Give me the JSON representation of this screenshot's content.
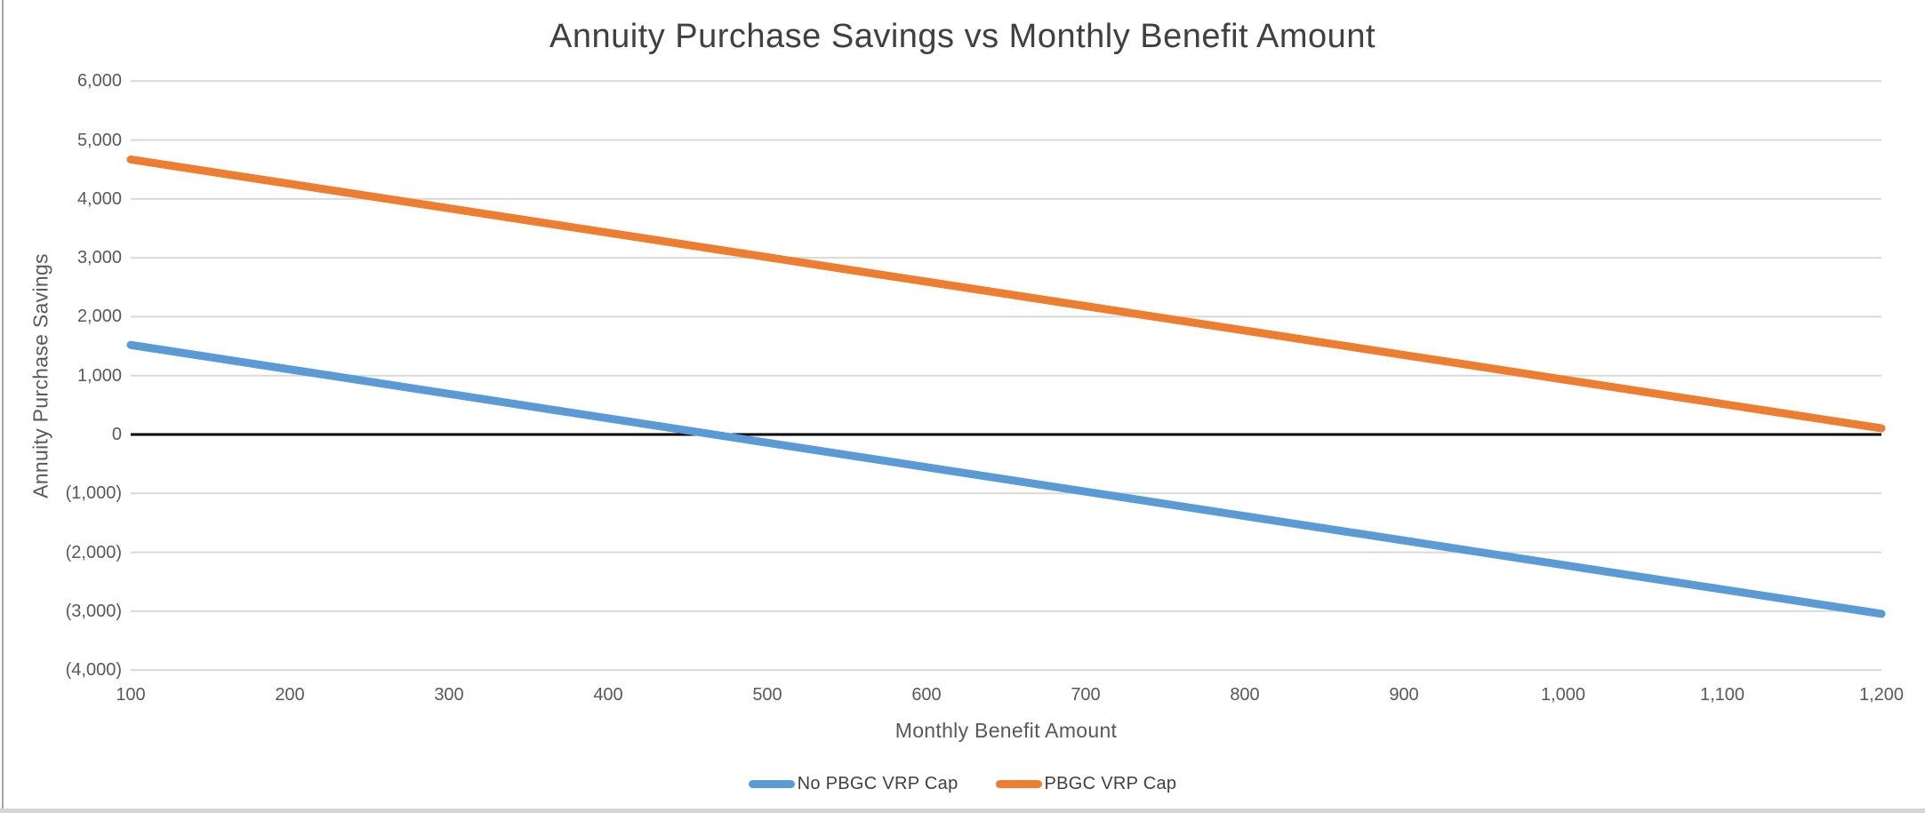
{
  "window": {
    "type": "embedded-chart"
  },
  "chart_data": {
    "type": "line",
    "title": "Annuity Purchase Savings vs Monthly Benefit Amount",
    "xlabel": "Monthly Benefit Amount",
    "ylabel": "Annuity Purchase Savings",
    "x": [
      100,
      200,
      300,
      400,
      500,
      600,
      700,
      800,
      900,
      1000,
      1100,
      1200
    ],
    "series": [
      {
        "name": "No PBGC VRP Cap",
        "color": "#5B9BD5",
        "values": [
          1520,
          1105,
          690,
          275,
          -140,
          -555,
          -970,
          -1385,
          -1800,
          -2215,
          -2630,
          -3045
        ]
      },
      {
        "name": "PBGC VRP Cap",
        "color": "#ED7D31",
        "values": [
          4670,
          4255,
          3840,
          3425,
          3010,
          2595,
          2180,
          1765,
          1350,
          935,
          520,
          105
        ]
      }
    ],
    "xlim": [
      100,
      1200
    ],
    "ylim": [
      -4000,
      6000
    ],
    "x_ticks": [
      {
        "v": 100,
        "label": "100"
      },
      {
        "v": 200,
        "label": "200"
      },
      {
        "v": 300,
        "label": "300"
      },
      {
        "v": 400,
        "label": "400"
      },
      {
        "v": 500,
        "label": "500"
      },
      {
        "v": 600,
        "label": "600"
      },
      {
        "v": 700,
        "label": "700"
      },
      {
        "v": 800,
        "label": "800"
      },
      {
        "v": 900,
        "label": "900"
      },
      {
        "v": 1000,
        "label": "1,000"
      },
      {
        "v": 1100,
        "label": "1,100"
      },
      {
        "v": 1200,
        "label": "1,200"
      }
    ],
    "y_ticks": [
      {
        "v": 6000,
        "label": "6,000"
      },
      {
        "v": 5000,
        "label": "5,000"
      },
      {
        "v": 4000,
        "label": "4,000"
      },
      {
        "v": 3000,
        "label": "3,000"
      },
      {
        "v": 2000,
        "label": "2,000"
      },
      {
        "v": 1000,
        "label": "1,000"
      },
      {
        "v": 0,
        "label": "0"
      },
      {
        "v": -1000,
        "label": "(1,000)"
      },
      {
        "v": -2000,
        "label": "(2,000)"
      },
      {
        "v": -3000,
        "label": "(3,000)"
      },
      {
        "v": -4000,
        "label": "(4,000)"
      }
    ],
    "grid": "horizontal",
    "legend_position": "bottom",
    "colors": {
      "gridline": "#D9D9D9",
      "zero_line": "#000000",
      "title_text": "#404040",
      "tick_text": "#595959",
      "axis_title_text": "#595959",
      "legend_text": "#404040"
    }
  }
}
